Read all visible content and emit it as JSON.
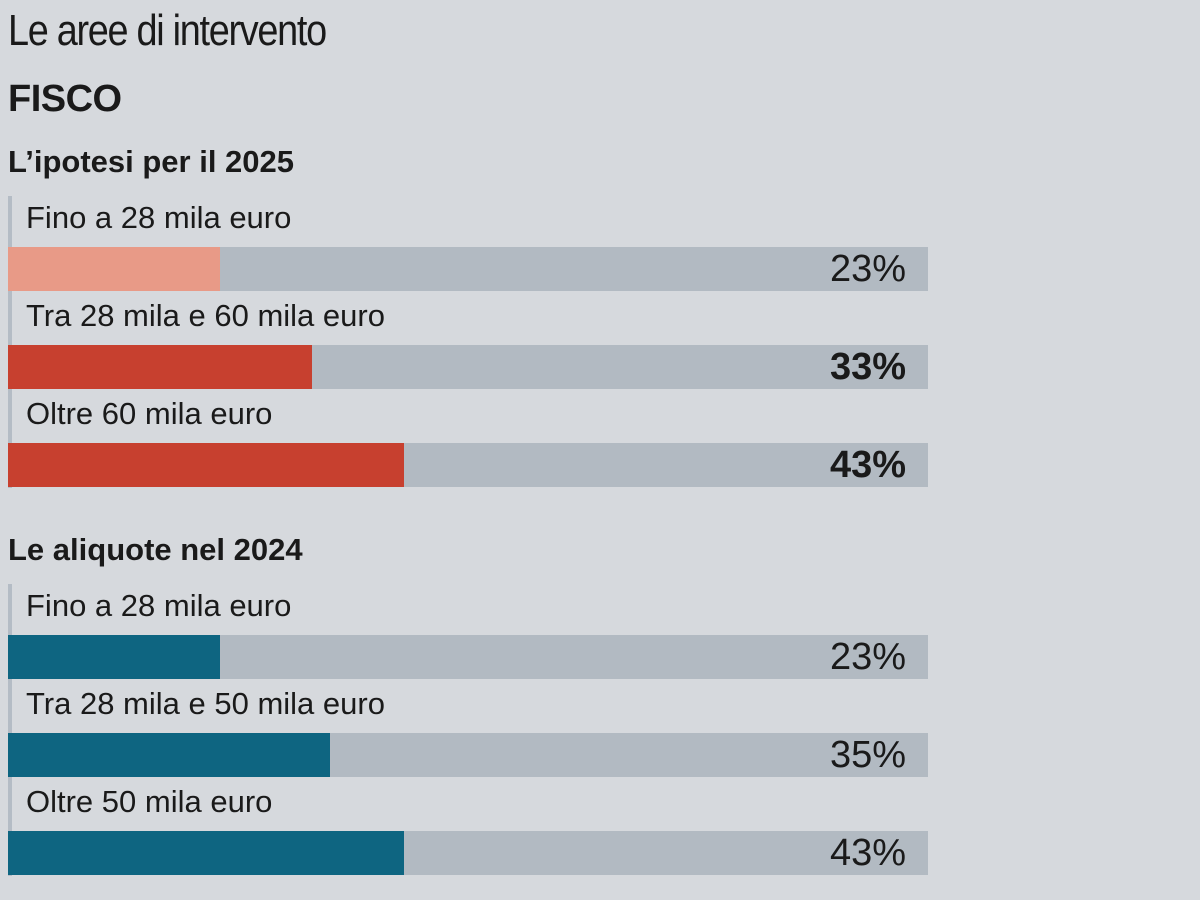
{
  "header": {
    "kicker": "Le aree di intervento",
    "headline": "FISCO"
  },
  "chart_data": [
    {
      "type": "bar",
      "title": "L’ipotesi per il 2025",
      "categories": [
        "Fino a 28 mila euro",
        "Tra 28 mila e 60 mila euro",
        "Oltre 60 mila euro"
      ],
      "values": [
        23,
        33,
        43
      ],
      "value_labels": [
        "23%",
        "33%",
        "43%"
      ],
      "bar_colors": [
        "#e89a87",
        "#c7402f",
        "#c7402f"
      ],
      "bold_values": [
        false,
        true,
        true
      ],
      "xlim": [
        0,
        100
      ],
      "orientation": "horizontal"
    },
    {
      "type": "bar",
      "title": "Le aliquote nel 2024",
      "categories": [
        "Fino a 28 mila euro",
        "Tra 28 mila e 50 mila euro",
        "Oltre 50 mila euro"
      ],
      "values": [
        23,
        35,
        43
      ],
      "value_labels": [
        "23%",
        "35%",
        "43%"
      ],
      "bar_colors": [
        "#0e6581",
        "#0e6581",
        "#0e6581"
      ],
      "bold_values": [
        false,
        false,
        false
      ],
      "xlim": [
        0,
        100
      ],
      "orientation": "horizontal"
    }
  ]
}
